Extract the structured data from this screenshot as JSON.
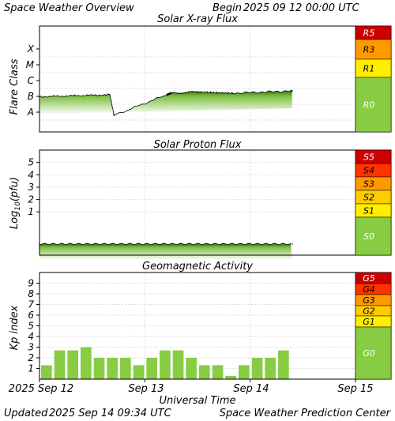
{
  "header": {
    "left": "Space Weather Overview",
    "begin_label": "Begin",
    "begin_value": "2025 09 12 00:00 UTC"
  },
  "footer": {
    "updated_label": "Updated",
    "updated_value": "2025 Sep 14 09:34 UTC",
    "credit": "Space Weather Prediction Center"
  },
  "chart_data": [
    {
      "type": "line",
      "title": "Solar X-ray Flux",
      "ylabel": "Flare Class",
      "y_tick_labels": [
        "A",
        "B",
        "C",
        "M",
        "X"
      ],
      "y_scale": "log (one class per decade)",
      "x": [
        "2025-09-12 00:00",
        "2025-09-12 16:00",
        "2025-09-12 17:00",
        "2025-09-13 05:00",
        "2025-09-13 06:00",
        "2025-09-13 12:00",
        "2025-09-13 20:00",
        "2025-09-14 09:34"
      ],
      "series": [
        {
          "values_flare_class": [
            "B3",
            "B4",
            "A2",
            "B4",
            "B5",
            "B6",
            "B5",
            "B7"
          ]
        }
      ],
      "scale_labels": [
        "R5",
        "R3",
        "R1",
        "R0"
      ],
      "scale_colors": [
        "#cc0000",
        "#ff9900",
        "#ffee00",
        "#88cc44"
      ]
    },
    {
      "type": "line",
      "title": "Solar Proton Flux",
      "ylabel_main": "Log",
      "ylabel_sub": "10",
      "ylabel_unit": "(pfu)",
      "y_tick_labels": [
        "1",
        "2",
        "3",
        "4",
        "5"
      ],
      "ylim": [
        -2.5,
        6
      ],
      "x": [
        "2025-09-12 00:00",
        "2025-09-14 09:34"
      ],
      "series": [
        {
          "values_log10_pfu": [
            -1.6,
            -1.6
          ]
        }
      ],
      "scale_labels": [
        "S5",
        "S4",
        "S3",
        "S2",
        "S1",
        "S0"
      ],
      "scale_colors": [
        "#cc0000",
        "#ff3300",
        "#ff9900",
        "#ffcc00",
        "#ffee00",
        "#88cc44"
      ]
    },
    {
      "type": "bar",
      "title": "Geomagnetic Activity",
      "ylabel": "Kp index",
      "y_tick_labels": [
        "1",
        "2",
        "3",
        "4",
        "5",
        "6",
        "7",
        "8",
        "9"
      ],
      "ylim": [
        0,
        10
      ],
      "interval_hours": 3,
      "values": [
        1.3,
        2.7,
        2.7,
        3.0,
        2.0,
        2.0,
        2.0,
        1.3,
        2.0,
        2.7,
        2.7,
        2.0,
        1.3,
        1.3,
        0.3,
        1.3,
        2.0,
        2.0,
        2.7
      ],
      "scale_labels": [
        "G5",
        "G4",
        "G3",
        "G2",
        "G1",
        "G0"
      ],
      "scale_colors": [
        "#cc0000",
        "#ff3300",
        "#ff9900",
        "#ffcc00",
        "#ffee00",
        "#88cc44"
      ]
    }
  ],
  "x_axis": {
    "label": "Universal Time",
    "tick_labels": [
      "2025 Sep 12",
      "Sep 13",
      "Sep 14",
      "Sep 15"
    ]
  },
  "colors": {
    "data_green": "#88cc44",
    "grid": "#dddddd",
    "frame": "#000000"
  }
}
